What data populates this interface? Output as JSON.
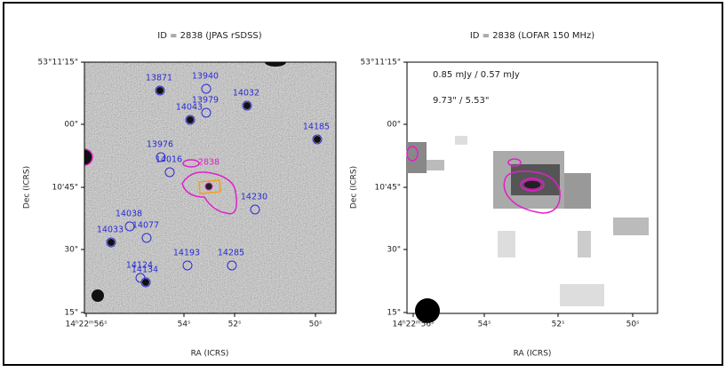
{
  "panels": [
    {
      "title": "ID = 2838 (JPAS rSDSS)",
      "yticks": [
        "53°11'15\"",
        "00\"",
        "10'45\"",
        "30\"",
        "15\""
      ],
      "xticks": [
        "14ʰ22ᵐ56ˢ",
        "54ˢ",
        "52ˢ",
        "50ˢ"
      ],
      "xlabel": "RA (ICRS)",
      "ylabel": "Dec (ICRS)",
      "target": "2838",
      "sources": [
        "13871",
        "13940",
        "14032",
        "14043",
        "13979",
        "14185",
        "13976",
        "14016",
        "14230",
        "14038",
        "14077",
        "14033",
        "14193",
        "14285",
        "14124",
        "14134"
      ]
    },
    {
      "title": "ID = 2838 (LOFAR 150 MHz)",
      "yticks": [
        "53°11'15\"",
        "00\"",
        "10'45\"",
        "30\"",
        "15\""
      ],
      "xticks": [
        "14ʰ22ᵐ56ˢ",
        "54ˢ",
        "52ˢ",
        "50ˢ"
      ],
      "xlabel": "RA (ICRS)",
      "ylabel": "Dec (ICRS)",
      "flux": "0.85 mJy / 0.57 mJy",
      "size": "9.73\" / 5.53\""
    }
  ]
}
